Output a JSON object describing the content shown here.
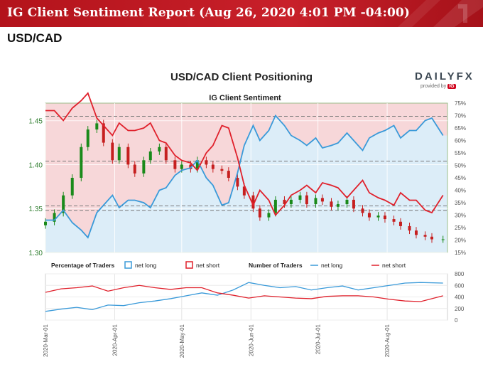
{
  "header": {
    "title": "IG Client Sentiment Report (Aug 26, 2020 4:01 PM -04:00)",
    "pair": "USD/CAD"
  },
  "brand": {
    "logo_text": "DAILYFX",
    "provided_by": "provided by",
    "ig": "IG",
    "accent": "#c8202a"
  },
  "chart_data": [
    {
      "type": "line",
      "title": "USD/CAD Client Positioning",
      "subtitle": "IG Client Sentiment",
      "ylim_left": [
        1.3,
        1.47
      ],
      "yticks_left": [
        "1.30",
        "1.35",
        "1.40",
        "1.45"
      ],
      "ylim_right": [
        15,
        75
      ],
      "yticks_right": [
        "15%",
        "20%",
        "25%",
        "30%",
        "35%",
        "40%",
        "45%",
        "50%",
        "55%",
        "60%",
        "65%",
        "70%",
        "75%"
      ],
      "dashed_levels_left": [
        1.455,
        1.404,
        1.353,
        1.348
      ],
      "grid": true,
      "series": [
        {
          "name": "net long",
          "axis": "right",
          "color": "#3a9ad9",
          "x": [
            "2020-03-01",
            "2020-03-05",
            "2020-03-09",
            "2020-03-13",
            "2020-03-17",
            "2020-03-20",
            "2020-03-24",
            "2020-03-27",
            "2020-03-31",
            "2020-04-03",
            "2020-04-07",
            "2020-04-10",
            "2020-04-14",
            "2020-04-17",
            "2020-04-21",
            "2020-04-24",
            "2020-04-28",
            "2020-05-01",
            "2020-05-05",
            "2020-05-08",
            "2020-05-12",
            "2020-05-15",
            "2020-05-19",
            "2020-05-22",
            "2020-05-26",
            "2020-05-29",
            "2020-06-02",
            "2020-06-05",
            "2020-06-09",
            "2020-06-12",
            "2020-06-16",
            "2020-06-19",
            "2020-06-23",
            "2020-06-26",
            "2020-06-30",
            "2020-07-03",
            "2020-07-07",
            "2020-07-10",
            "2020-07-14",
            "2020-07-17",
            "2020-07-21",
            "2020-07-24",
            "2020-07-28",
            "2020-07-31",
            "2020-08-04",
            "2020-08-07",
            "2020-08-11",
            "2020-08-14",
            "2020-08-18",
            "2020-08-21",
            "2020-08-26"
          ],
          "values": [
            28,
            28,
            32,
            27,
            24,
            21,
            31,
            34,
            38,
            33,
            36,
            36,
            35,
            33,
            40,
            41,
            46,
            48,
            49,
            52,
            45,
            42,
            34,
            35,
            47,
            58,
            66,
            60,
            64,
            70,
            66,
            62,
            60,
            58,
            61,
            57,
            58,
            59,
            63,
            60,
            56,
            61,
            63,
            64,
            66,
            61,
            64,
            64,
            68,
            69,
            62
          ]
        },
        {
          "name": "net short",
          "axis": "right",
          "color": "#e0212c",
          "x": [
            "2020-03-01",
            "2020-03-05",
            "2020-03-09",
            "2020-03-13",
            "2020-03-17",
            "2020-03-20",
            "2020-03-24",
            "2020-03-27",
            "2020-03-31",
            "2020-04-03",
            "2020-04-07",
            "2020-04-10",
            "2020-04-14",
            "2020-04-17",
            "2020-04-21",
            "2020-04-24",
            "2020-04-28",
            "2020-05-01",
            "2020-05-05",
            "2020-05-08",
            "2020-05-12",
            "2020-05-15",
            "2020-05-19",
            "2020-05-22",
            "2020-05-26",
            "2020-05-29",
            "2020-06-02",
            "2020-06-05",
            "2020-06-09",
            "2020-06-12",
            "2020-06-16",
            "2020-06-19",
            "2020-06-23",
            "2020-06-26",
            "2020-06-30",
            "2020-07-03",
            "2020-07-07",
            "2020-07-10",
            "2020-07-14",
            "2020-07-17",
            "2020-07-21",
            "2020-07-24",
            "2020-07-28",
            "2020-07-31",
            "2020-08-04",
            "2020-08-07",
            "2020-08-11",
            "2020-08-14",
            "2020-08-18",
            "2020-08-21",
            "2020-08-26"
          ],
          "values": [
            72,
            72,
            68,
            73,
            76,
            79,
            69,
            66,
            62,
            67,
            64,
            64,
            65,
            67,
            60,
            59,
            54,
            52,
            51,
            48,
            55,
            58,
            66,
            65,
            53,
            42,
            34,
            40,
            36,
            30,
            34,
            38,
            40,
            42,
            39,
            43,
            42,
            41,
            37,
            40,
            44,
            39,
            37,
            36,
            34,
            39,
            36,
            36,
            32,
            31,
            38
          ]
        },
        {
          "name": "USD/CAD",
          "type": "candlestick",
          "axis": "left",
          "up_color": "#1a8a1a",
          "down_color": "#c61f1f",
          "x": [
            "2020-03-01",
            "2020-03-05",
            "2020-03-09",
            "2020-03-13",
            "2020-03-17",
            "2020-03-20",
            "2020-03-24",
            "2020-03-27",
            "2020-03-31",
            "2020-04-03",
            "2020-04-07",
            "2020-04-10",
            "2020-04-14",
            "2020-04-17",
            "2020-04-21",
            "2020-04-24",
            "2020-04-28",
            "2020-05-01",
            "2020-05-05",
            "2020-05-08",
            "2020-05-12",
            "2020-05-15",
            "2020-05-19",
            "2020-05-22",
            "2020-05-26",
            "2020-05-29",
            "2020-06-02",
            "2020-06-05",
            "2020-06-09",
            "2020-06-12",
            "2020-06-16",
            "2020-06-19",
            "2020-06-23",
            "2020-06-26",
            "2020-06-30",
            "2020-07-03",
            "2020-07-07",
            "2020-07-10",
            "2020-07-14",
            "2020-07-17",
            "2020-07-21",
            "2020-07-24",
            "2020-07-28",
            "2020-07-31",
            "2020-08-04",
            "2020-08-07",
            "2020-08-11",
            "2020-08-14",
            "2020-08-18",
            "2020-08-21",
            "2020-08-26"
          ],
          "close": [
            1.335,
            1.345,
            1.365,
            1.385,
            1.42,
            1.44,
            1.447,
            1.425,
            1.405,
            1.42,
            1.4,
            1.39,
            1.405,
            1.415,
            1.42,
            1.405,
            1.395,
            1.4,
            1.395,
            1.405,
            1.4,
            1.395,
            1.393,
            1.385,
            1.375,
            1.365,
            1.35,
            1.34,
            1.345,
            1.36,
            1.355,
            1.36,
            1.365,
            1.355,
            1.362,
            1.358,
            1.352,
            1.355,
            1.36,
            1.35,
            1.345,
            1.34,
            1.342,
            1.338,
            1.335,
            1.33,
            1.325,
            1.32,
            1.318,
            1.315,
            1.315
          ]
        }
      ]
    },
    {
      "type": "line",
      "legend_percentage": {
        "label": "Percentage of Traders",
        "net_long": "net long",
        "net_short": "net short"
      },
      "legend_number": {
        "label": "Number of Traders",
        "net_long": "net long",
        "net_short": "net short"
      },
      "ylim_right": [
        0,
        800
      ],
      "yticks_right": [
        "0",
        "200",
        "400",
        "600",
        "800"
      ],
      "xticks": [
        "2020-Mar-01",
        "2020-Apr-01",
        "2020-May-01",
        "2020-Jun-01",
        "2020-Jul-01",
        "2020-Aug-01"
      ],
      "series": [
        {
          "name": "net long",
          "color": "#3a9ad9",
          "x": [
            "2020-03-01",
            "2020-03-08",
            "2020-03-15",
            "2020-03-22",
            "2020-03-29",
            "2020-04-05",
            "2020-04-12",
            "2020-04-19",
            "2020-04-26",
            "2020-05-03",
            "2020-05-10",
            "2020-05-17",
            "2020-05-24",
            "2020-05-31",
            "2020-06-07",
            "2020-06-14",
            "2020-06-21",
            "2020-06-28",
            "2020-07-05",
            "2020-07-12",
            "2020-07-19",
            "2020-07-26",
            "2020-08-02",
            "2020-08-09",
            "2020-08-16",
            "2020-08-26"
          ],
          "values": [
            150,
            190,
            220,
            180,
            260,
            250,
            300,
            330,
            370,
            420,
            470,
            430,
            520,
            650,
            600,
            560,
            580,
            520,
            560,
            590,
            520,
            560,
            600,
            640,
            650,
            640
          ]
        },
        {
          "name": "net short",
          "color": "#e0212c",
          "x": [
            "2020-03-01",
            "2020-03-08",
            "2020-03-15",
            "2020-03-22",
            "2020-03-29",
            "2020-04-05",
            "2020-04-12",
            "2020-04-19",
            "2020-04-26",
            "2020-05-03",
            "2020-05-10",
            "2020-05-17",
            "2020-05-24",
            "2020-05-31",
            "2020-06-07",
            "2020-06-14",
            "2020-06-21",
            "2020-06-28",
            "2020-07-05",
            "2020-07-12",
            "2020-07-19",
            "2020-07-26",
            "2020-08-02",
            "2020-08-09",
            "2020-08-16",
            "2020-08-26"
          ],
          "values": [
            480,
            540,
            560,
            590,
            500,
            560,
            600,
            560,
            530,
            560,
            560,
            470,
            430,
            380,
            420,
            400,
            380,
            370,
            410,
            420,
            420,
            400,
            360,
            330,
            320,
            420
          ]
        }
      ]
    }
  ]
}
